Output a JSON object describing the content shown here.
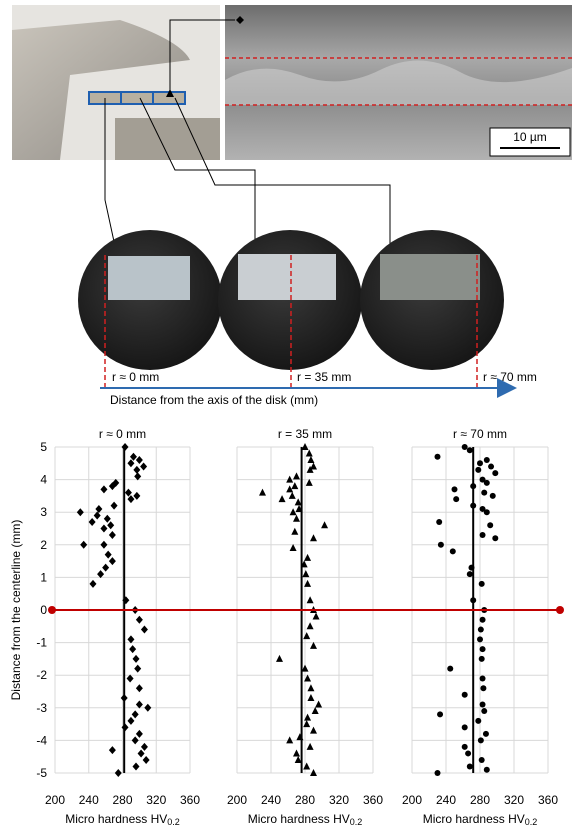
{
  "figure": {
    "scale_bar": "10 µm",
    "positions": [
      "r ≈ 0 mm",
      "r = 35 mm",
      "r ≈ 70 mm"
    ],
    "axis_label": "Distance from the axis of the disk (mm)"
  },
  "chart_data": [
    {
      "type": "scatter",
      "title": "r ≈ 0 mm",
      "marker": "diamond",
      "color": "#000000",
      "y_label": "Distance from the centerline (mm)",
      "x_label": "Micro hardness HV",
      "x_label_sub": "0.2",
      "mean_line": 282,
      "highlight_y": 0,
      "grid": true,
      "xlim": [
        200,
        360
      ],
      "ylim": [
        -5,
        5
      ],
      "xticks": [
        200,
        240,
        280,
        320,
        360
      ],
      "yticks": [
        -5,
        -4,
        -3,
        -2,
        -1,
        0,
        1,
        2,
        3,
        4,
        5
      ],
      "x": [
        283,
        293,
        300,
        290,
        305,
        297,
        298,
        272,
        268,
        258,
        287,
        297,
        290,
        270,
        252,
        230,
        250,
        262,
        244,
        266,
        258,
        268,
        234,
        258,
        263,
        268,
        260,
        254,
        245,
        284,
        295,
        300,
        306,
        290,
        292,
        296,
        298,
        289,
        300,
        282,
        300,
        310,
        295,
        290,
        283,
        300,
        295,
        306,
        302,
        308,
        296,
        275,
        268
      ],
      "values": [
        5,
        4.7,
        4.6,
        4.5,
        4.4,
        4.3,
        4.1,
        3.9,
        3.8,
        3.7,
        3.6,
        3.5,
        3.4,
        3.2,
        3.1,
        3,
        2.9,
        2.8,
        2.7,
        2.6,
        2.5,
        2.3,
        2,
        2,
        1.7,
        1.5,
        1.3,
        1.1,
        0.8,
        0.3,
        0,
        -0.3,
        -0.6,
        -0.9,
        -1.2,
        -1.5,
        -1.8,
        -2.1,
        -2.4,
        -2.7,
        -2.9,
        -3,
        -3.2,
        -3.4,
        -3.6,
        -3.8,
        -4,
        -4.2,
        -4.4,
        -4.6,
        -4.8,
        -5,
        -4.3
      ]
    },
    {
      "type": "scatter",
      "title": "r = 35 mm",
      "marker": "triangle",
      "color": "#000000",
      "x_label": "Micro hardness HV",
      "x_label_sub": "0.2",
      "mean_line": 276,
      "grid": true,
      "xlim": [
        200,
        360
      ],
      "ylim": [
        -5,
        5
      ],
      "xticks": [
        200,
        240,
        280,
        320,
        360
      ],
      "yticks": [
        -5,
        -4,
        -3,
        -2,
        -1,
        0,
        1,
        2,
        3,
        4,
        5
      ],
      "x": [
        280,
        285,
        287,
        290,
        286,
        270,
        262,
        285,
        268,
        262,
        230,
        265,
        253,
        272,
        273,
        266,
        270,
        303,
        268,
        290,
        266,
        283,
        279,
        281,
        283,
        286,
        290,
        293,
        286,
        282,
        290,
        250,
        280,
        283,
        287,
        287,
        296,
        292,
        283,
        282,
        290,
        274,
        262,
        286,
        270,
        272,
        282,
        290
      ],
      "values": [
        5,
        4.8,
        4.6,
        4.4,
        4.3,
        4.1,
        4,
        3.9,
        3.8,
        3.7,
        3.6,
        3.5,
        3.4,
        3.3,
        3.1,
        3,
        2.8,
        2.6,
        2.4,
        2.2,
        1.9,
        1.6,
        1.4,
        1.1,
        0.8,
        0.3,
        0,
        -0.2,
        -0.5,
        -0.8,
        -1.1,
        -1.5,
        -1.8,
        -2.1,
        -2.4,
        -2.7,
        -2.9,
        -3.1,
        -3.3,
        -3.5,
        -3.7,
        -3.9,
        -4,
        -4.2,
        -4.4,
        -4.6,
        -4.8,
        -5
      ]
    },
    {
      "type": "scatter",
      "title": "r ≈ 70 mm",
      "marker": "circle",
      "color": "#000000",
      "x_label": "Micro hardness HV",
      "x_label_sub": "0.2",
      "mean_line": 272,
      "grid": true,
      "xlim": [
        200,
        360
      ],
      "ylim": [
        -5,
        5
      ],
      "xticks": [
        200,
        240,
        280,
        320,
        360
      ],
      "yticks": [
        -5,
        -4,
        -3,
        -2,
        -1,
        0,
        1,
        2,
        3,
        4,
        5
      ],
      "x": [
        262,
        268,
        230,
        288,
        280,
        293,
        278,
        298,
        283,
        288,
        272,
        250,
        285,
        295,
        252,
        272,
        283,
        288,
        232,
        292,
        283,
        298,
        234,
        248,
        270,
        268,
        282,
        272,
        285,
        283,
        281,
        280,
        283,
        282,
        245,
        283,
        284,
        262,
        283,
        285,
        233,
        278,
        262,
        287,
        281,
        262,
        266,
        282,
        268,
        230,
        288
      ],
      "values": [
        5,
        4.9,
        4.7,
        4.6,
        4.5,
        4.4,
        4.3,
        4.2,
        4,
        3.9,
        3.8,
        3.7,
        3.6,
        3.5,
        3.4,
        3.2,
        3.1,
        3,
        2.7,
        2.6,
        2.3,
        2.2,
        2,
        1.8,
        1.3,
        1.1,
        0.8,
        0.3,
        0,
        -0.3,
        -0.6,
        -0.9,
        -1.2,
        -1.5,
        -1.8,
        -2.1,
        -2.4,
        -2.6,
        -2.9,
        -3.1,
        -3.2,
        -3.4,
        -3.6,
        -3.8,
        -4,
        -4.2,
        -4.4,
        -4.6,
        -4.8,
        -5,
        -4.9
      ]
    }
  ]
}
